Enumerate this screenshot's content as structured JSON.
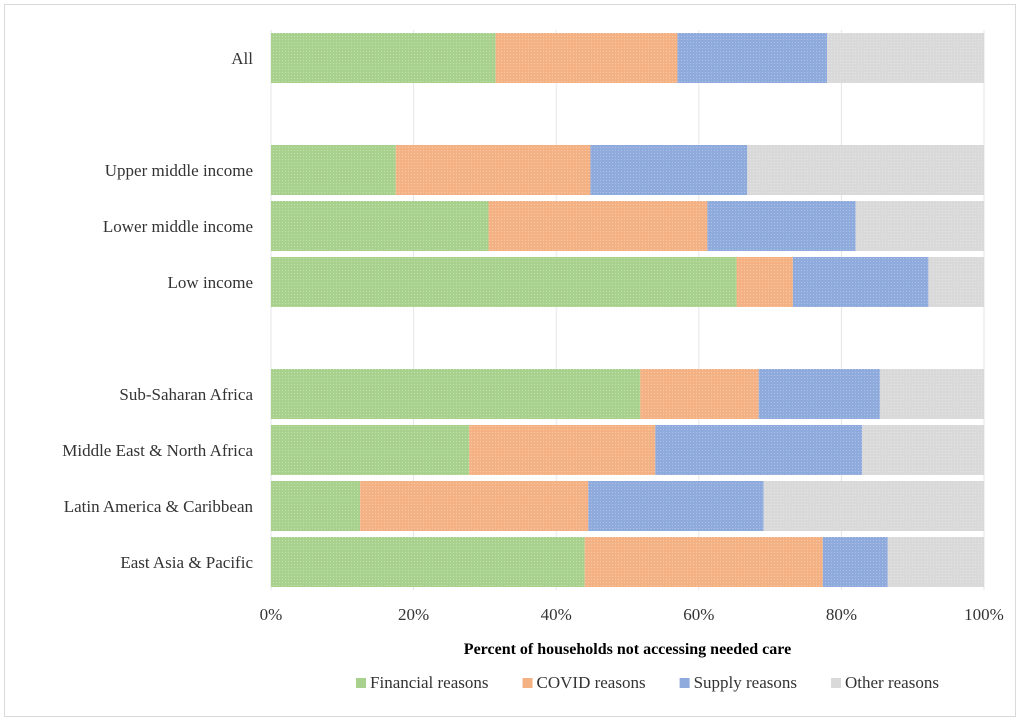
{
  "chart_data": {
    "type": "bar",
    "orientation": "horizontal",
    "stacked": "percent",
    "categories": [
      "All",
      "",
      "Upper middle income",
      "Lower middle income",
      "Low income",
      "",
      "Sub-Saharan Africa",
      "Middle East & North Africa",
      "Latin America & Caribbean",
      "East Asia & Pacific"
    ],
    "series": [
      {
        "name": "Financial reasons",
        "color": "#a9d18e",
        "values": [
          31.5,
          null,
          17.5,
          30.5,
          65.3,
          null,
          51.8,
          27.8,
          12.5,
          44.0
        ]
      },
      {
        "name": "COVID reasons",
        "color": "#f4b183",
        "values": [
          25.5,
          null,
          27.3,
          30.7,
          7.9,
          null,
          16.6,
          26.1,
          32.0,
          33.4
        ]
      },
      {
        "name": "Supply reasons",
        "color": "#8faadc",
        "values": [
          21.0,
          null,
          22.0,
          20.8,
          19.0,
          null,
          17.0,
          29.0,
          24.6,
          9.1
        ]
      },
      {
        "name": "Other reasons",
        "color": "#d9d9d9",
        "values": [
          22.0,
          null,
          33.2,
          18.0,
          7.8,
          null,
          14.6,
          17.1,
          30.9,
          13.5
        ]
      }
    ],
    "xlim": [
      0,
      100
    ],
    "x_ticks": [
      "0%",
      "20%",
      "40%",
      "60%",
      "80%",
      "100%"
    ],
    "xlabel": "Percent of households not accessing needed care",
    "ylabel": "",
    "legend_position": "bottom",
    "grid": "vertical"
  }
}
